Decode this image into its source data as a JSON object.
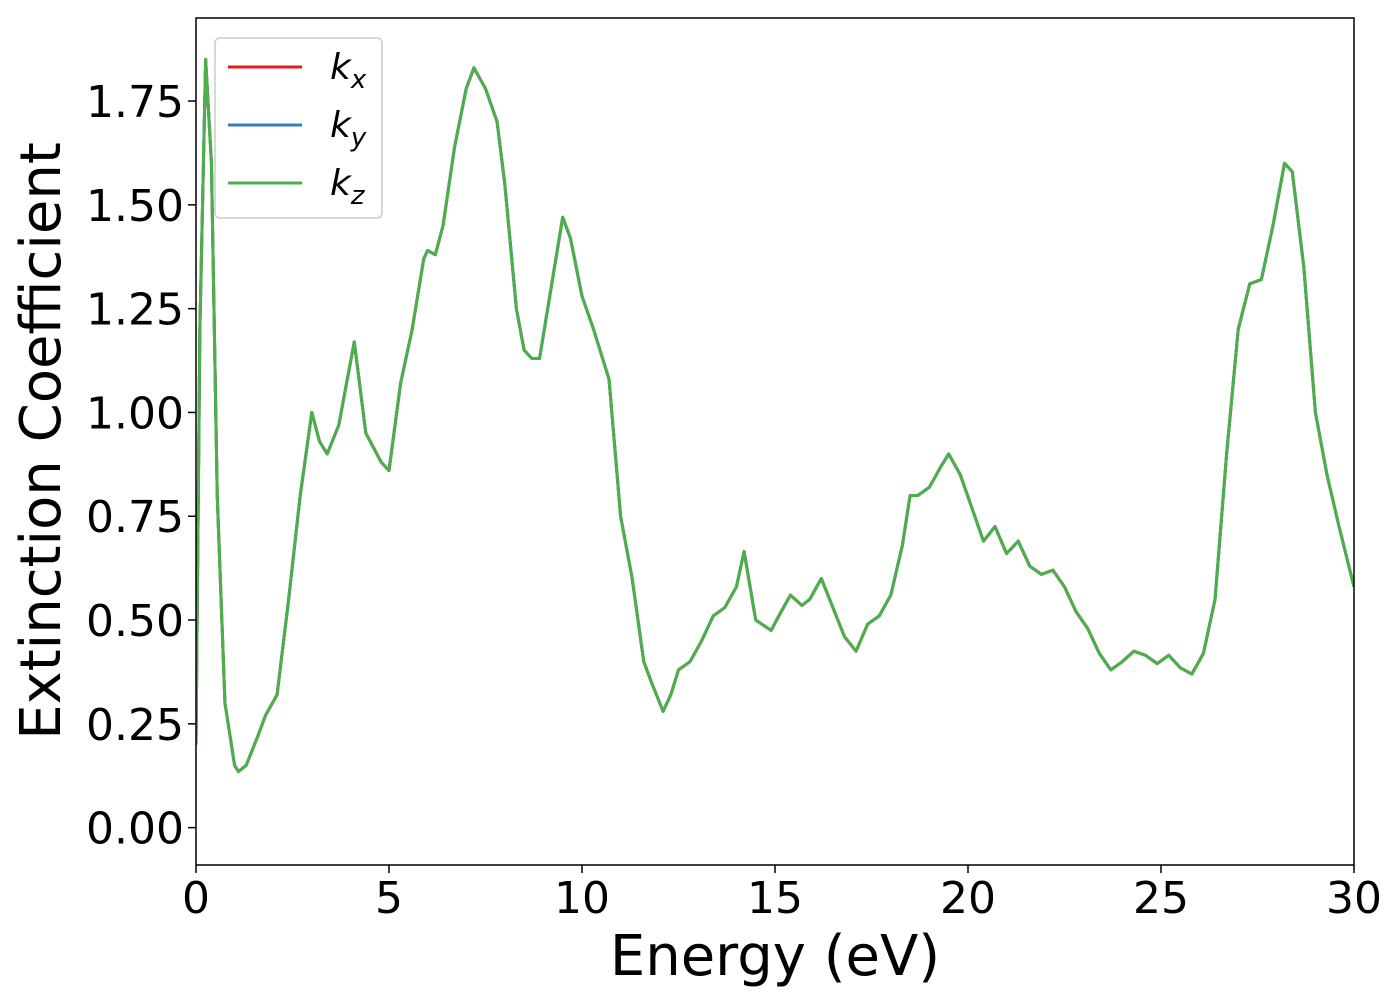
{
  "chart_data": {
    "type": "line",
    "xlabel": "Energy (eV)",
    "ylabel": "Extinction Coefficient",
    "xlim": [
      0,
      30
    ],
    "ylim": [
      -0.09,
      1.95
    ],
    "xticks": [
      0,
      5,
      10,
      15,
      20,
      25,
      30
    ],
    "yticks": [
      {
        "value": 0,
        "label": "0.00"
      },
      {
        "value": 0.25,
        "label": "0.25"
      },
      {
        "value": 0.5,
        "label": "0.50"
      },
      {
        "value": 0.75,
        "label": "0.75"
      },
      {
        "value": 1,
        "label": "1.00"
      },
      {
        "value": 1.25,
        "label": "1.25"
      },
      {
        "value": 1.5,
        "label": "1.50"
      },
      {
        "value": 1.75,
        "label": "1.75"
      }
    ],
    "legend": "upper left",
    "grid": false,
    "x": [
      0,
      0.1,
      0.25,
      0.4,
      0.55,
      0.75,
      1.0,
      1.1,
      1.3,
      1.6,
      1.8,
      2.1,
      2.4,
      2.7,
      3.0,
      3.2,
      3.4,
      3.7,
      4.1,
      4.4,
      4.8,
      5.0,
      5.3,
      5.6,
      5.9,
      6.0,
      6.2,
      6.4,
      6.7,
      7.0,
      7.2,
      7.5,
      7.8,
      8.0,
      8.3,
      8.5,
      8.7,
      8.9,
      9.2,
      9.5,
      9.7,
      10.0,
      10.3,
      10.7,
      11.0,
      11.3,
      11.6,
      11.8,
      12.1,
      12.3,
      12.5,
      12.8,
      13.1,
      13.4,
      13.7,
      14.0,
      14.2,
      14.5,
      14.9,
      15.1,
      15.4,
      15.7,
      15.9,
      16.2,
      16.5,
      16.8,
      17.1,
      17.4,
      17.7,
      18.0,
      18.3,
      18.5,
      18.7,
      19.0,
      19.3,
      19.5,
      19.8,
      20.1,
      20.4,
      20.7,
      21.0,
      21.3,
      21.6,
      21.9,
      22.2,
      22.5,
      22.8,
      23.1,
      23.4,
      23.7,
      24.0,
      24.3,
      24.6,
      24.9,
      25.2,
      25.5,
      25.8,
      26.1,
      26.4,
      26.7,
      27.0,
      27.3,
      27.6,
      27.9,
      28.2,
      28.4,
      28.7,
      29.0,
      29.3,
      29.6,
      30.0
    ],
    "series": [
      {
        "name": "k",
        "subscript": "x",
        "color": "#e41a1c",
        "values": [
          0.2,
          1.2,
          1.85,
          1.6,
          0.8,
          0.3,
          0.15,
          0.135,
          0.15,
          0.22,
          0.27,
          0.32,
          0.55,
          0.8,
          1.0,
          0.93,
          0.9,
          0.97,
          1.17,
          0.95,
          0.88,
          0.86,
          1.07,
          1.2,
          1.37,
          1.39,
          1.38,
          1.45,
          1.64,
          1.78,
          1.83,
          1.78,
          1.7,
          1.55,
          1.25,
          1.15,
          1.13,
          1.13,
          1.3,
          1.47,
          1.42,
          1.28,
          1.2,
          1.08,
          0.75,
          0.6,
          0.4,
          0.35,
          0.28,
          0.32,
          0.38,
          0.4,
          0.45,
          0.51,
          0.53,
          0.58,
          0.665,
          0.5,
          0.475,
          0.51,
          0.56,
          0.535,
          0.55,
          0.6,
          0.53,
          0.46,
          0.425,
          0.49,
          0.51,
          0.56,
          0.68,
          0.8,
          0.8,
          0.82,
          0.87,
          0.9,
          0.85,
          0.77,
          0.69,
          0.725,
          0.66,
          0.69,
          0.63,
          0.61,
          0.62,
          0.58,
          0.52,
          0.48,
          0.42,
          0.38,
          0.4,
          0.425,
          0.415,
          0.395,
          0.415,
          0.385,
          0.37,
          0.42,
          0.55,
          0.9,
          1.2,
          1.31,
          1.32,
          1.45,
          1.6,
          1.58,
          1.35,
          1.0,
          0.85,
          0.73,
          0.58
        ]
      },
      {
        "name": "k",
        "subscript": "y",
        "color": "#377eb8",
        "values": [
          0.2,
          1.2,
          1.85,
          1.6,
          0.8,
          0.3,
          0.15,
          0.135,
          0.15,
          0.22,
          0.27,
          0.32,
          0.55,
          0.8,
          1.0,
          0.93,
          0.9,
          0.97,
          1.17,
          0.95,
          0.88,
          0.86,
          1.07,
          1.2,
          1.37,
          1.39,
          1.38,
          1.45,
          1.64,
          1.78,
          1.83,
          1.78,
          1.7,
          1.55,
          1.25,
          1.15,
          1.13,
          1.13,
          1.3,
          1.47,
          1.42,
          1.28,
          1.2,
          1.08,
          0.75,
          0.6,
          0.4,
          0.35,
          0.28,
          0.32,
          0.38,
          0.4,
          0.45,
          0.51,
          0.53,
          0.58,
          0.665,
          0.5,
          0.475,
          0.51,
          0.56,
          0.535,
          0.55,
          0.6,
          0.53,
          0.46,
          0.425,
          0.49,
          0.51,
          0.56,
          0.68,
          0.8,
          0.8,
          0.82,
          0.87,
          0.9,
          0.85,
          0.77,
          0.69,
          0.725,
          0.66,
          0.69,
          0.63,
          0.61,
          0.62,
          0.58,
          0.52,
          0.48,
          0.42,
          0.38,
          0.4,
          0.425,
          0.415,
          0.395,
          0.415,
          0.385,
          0.37,
          0.42,
          0.55,
          0.9,
          1.2,
          1.31,
          1.32,
          1.45,
          1.6,
          1.58,
          1.35,
          1.0,
          0.85,
          0.73,
          0.58
        ]
      },
      {
        "name": "k",
        "subscript": "z",
        "color": "#4daf4a",
        "values": [
          0.2,
          1.2,
          1.85,
          1.6,
          0.8,
          0.3,
          0.15,
          0.135,
          0.15,
          0.22,
          0.27,
          0.32,
          0.55,
          0.8,
          1.0,
          0.93,
          0.9,
          0.97,
          1.17,
          0.95,
          0.88,
          0.86,
          1.07,
          1.2,
          1.37,
          1.39,
          1.38,
          1.45,
          1.64,
          1.78,
          1.83,
          1.78,
          1.7,
          1.55,
          1.25,
          1.15,
          1.13,
          1.13,
          1.3,
          1.47,
          1.42,
          1.28,
          1.2,
          1.08,
          0.75,
          0.6,
          0.4,
          0.35,
          0.28,
          0.32,
          0.38,
          0.4,
          0.45,
          0.51,
          0.53,
          0.58,
          0.665,
          0.5,
          0.475,
          0.51,
          0.56,
          0.535,
          0.55,
          0.6,
          0.53,
          0.46,
          0.425,
          0.49,
          0.51,
          0.56,
          0.68,
          0.8,
          0.8,
          0.82,
          0.87,
          0.9,
          0.85,
          0.77,
          0.69,
          0.725,
          0.66,
          0.69,
          0.63,
          0.61,
          0.62,
          0.58,
          0.52,
          0.48,
          0.42,
          0.38,
          0.4,
          0.425,
          0.415,
          0.395,
          0.415,
          0.385,
          0.37,
          0.42,
          0.55,
          0.9,
          1.2,
          1.31,
          1.32,
          1.45,
          1.6,
          1.58,
          1.35,
          1.0,
          0.85,
          0.73,
          0.58
        ]
      }
    ]
  }
}
